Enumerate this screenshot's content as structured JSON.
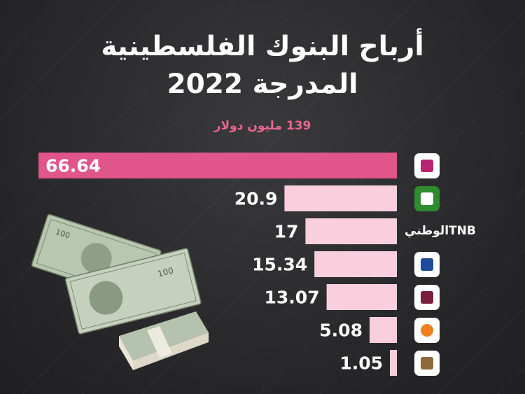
{
  "title_line1": "أرباح البنوك الفلسطينية",
  "title_line2": "المدرجة 2022",
  "subtitle": "139 مليون دولار",
  "colors": {
    "highlight_bar": "#e0558a",
    "bar": "#f9cfdd",
    "highlight_text": "#ffffff",
    "text": "#222222",
    "accent": "#e9668f"
  },
  "banks": [
    {
      "logo_icon": "bank-of-palestine-logo-icon",
      "logo_color": "#b8246f"
    },
    {
      "logo_icon": "quds-bank-logo-icon",
      "logo_color": "#2e8b2e"
    },
    {
      "logo_text": "TNBالوطني"
    },
    {
      "logo_icon": "palestine-islamic-bank-logo-icon",
      "logo_color": "#1e4b9a"
    },
    {
      "logo_icon": "arab-islamic-bank-logo-icon",
      "logo_color": "#7a1f3d"
    },
    {
      "logo_icon": "palestine-investment-bank-logo-icon",
      "logo_color": "#f07f1f"
    },
    {
      "logo_icon": "safa-bank-logo-icon",
      "logo_color": "#8c6a3a"
    }
  ],
  "chart_data": {
    "type": "bar",
    "orientation": "horizontal",
    "values": [
      66.64,
      20.9,
      17,
      15.34,
      13.07,
      5.08,
      1.05
    ],
    "value_labels": [
      "66.64",
      "20.9",
      "17",
      "15.34",
      "13.07",
      "5.08",
      "1.05"
    ]
  }
}
